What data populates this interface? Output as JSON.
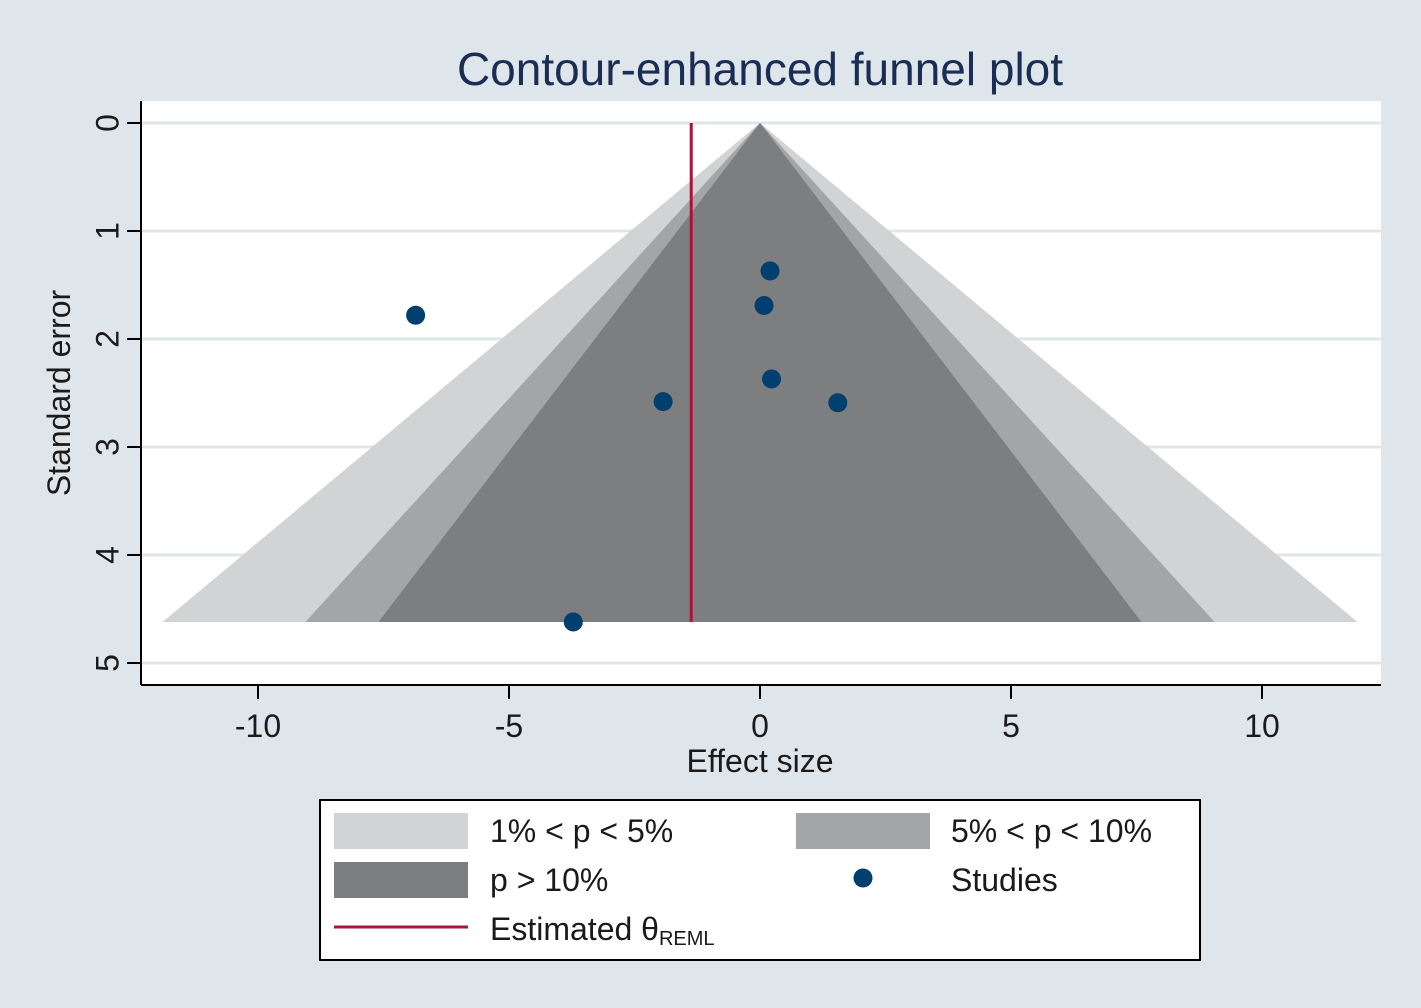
{
  "chart_data": {
    "type": "scatter",
    "title": "Contour-enhanced funnel plot",
    "xlabel": "Effect size",
    "ylabel": "Standard error",
    "xlim": [
      -12.6,
      12.3
    ],
    "ylim": [
      0,
      5.2
    ],
    "y_reversed": true,
    "x_ticks": [
      -10,
      -5,
      0,
      5,
      10
    ],
    "x_tick_labels": [
      "-10",
      "-5",
      "0",
      "5",
      "10"
    ],
    "y_ticks": [
      0,
      1,
      2,
      3,
      4,
      5
    ],
    "y_tick_labels": [
      "0",
      "1",
      "2",
      "3",
      "4",
      "5"
    ],
    "grid": true,
    "funnel_center": 0,
    "funnel_max_se": 4.62,
    "contours": [
      {
        "name": "1% < p < 5%",
        "color": "#d2d3d5",
        "z": 2.576
      },
      {
        "name": "5% < p < 10%",
        "color": "#a4a5a8",
        "z": 1.96
      },
      {
        "name": "p > 10%",
        "color": "#7d7e80",
        "z": 1.645
      }
    ],
    "estimate": {
      "label": "Estimated θ",
      "label_sub": "REML",
      "value": -1.37,
      "color": "#a8143a"
    },
    "studies": {
      "name": "Studies",
      "color": "#003f6e",
      "points": [
        {
          "x": 0.2,
          "y": 1.37
        },
        {
          "x": 0.08,
          "y": 1.69
        },
        {
          "x": -6.86,
          "y": 1.78
        },
        {
          "x": 0.23,
          "y": 2.37
        },
        {
          "x": -1.93,
          "y": 2.58
        },
        {
          "x": 1.55,
          "y": 2.59
        },
        {
          "x": -3.72,
          "y": 4.62
        }
      ]
    },
    "legend": [
      {
        "label": "1% < p < 5%",
        "kind": "box",
        "color": "#d2d3d5"
      },
      {
        "label": "5% < p < 10%",
        "kind": "box",
        "color": "#a4a5a8"
      },
      {
        "label": "p > 10%",
        "kind": "box",
        "color": "#7d7e80"
      },
      {
        "label": "Studies",
        "kind": "dot",
        "color": "#003f6e"
      },
      {
        "label": "Estimated θ",
        "label_sub": "REML",
        "kind": "line",
        "color": "#a8143a"
      }
    ],
    "legend_position": "bottom"
  }
}
